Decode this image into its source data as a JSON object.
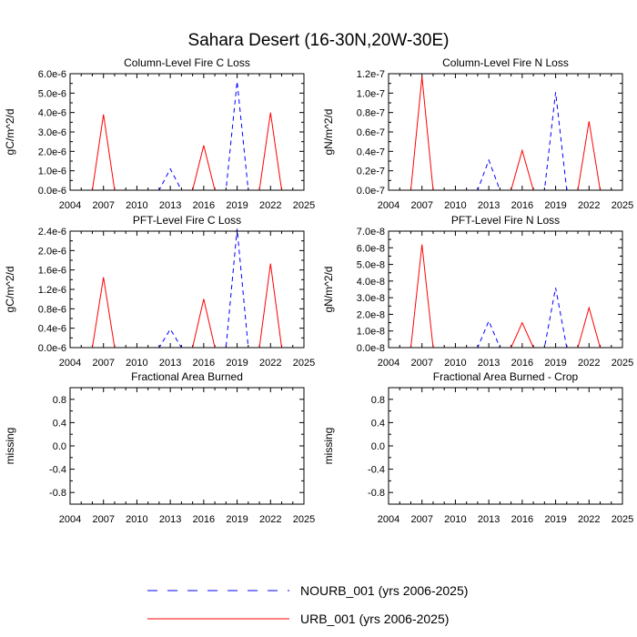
{
  "figure": {
    "title": "Sahara Desert (16-30N,20W-30E)"
  },
  "chart_data": [
    {
      "type": "line",
      "title": "Column-Level Fire C Loss",
      "ylabel": "gC/m^2/d",
      "xlabel": "",
      "x": [
        2006,
        2007,
        2008,
        2009,
        2010,
        2011,
        2012,
        2013,
        2014,
        2015,
        2016,
        2017,
        2018,
        2019,
        2020,
        2021,
        2022,
        2023,
        2024,
        2025
      ],
      "xlim": [
        2004,
        2025
      ],
      "xticks": [
        "2004",
        "2007",
        "2010",
        "2013",
        "2016",
        "2019",
        "2022",
        "2025"
      ],
      "ylim": [
        0,
        6e-06
      ],
      "yticks": [
        0,
        1e-06,
        2e-06,
        3e-06,
        4e-06,
        5e-06,
        6e-06
      ],
      "ytick_labels": [
        "0.0e-6",
        "1.0e-6",
        "2.0e-6",
        "3.0e-6",
        "4.0e-6",
        "5.0e-6",
        "6.0e-6"
      ],
      "series": [
        {
          "name": "NOURB_001 (yrs 2006-2025)",
          "color": "#0000ff",
          "dash": "dashed",
          "values": [
            0,
            0,
            0,
            0,
            0,
            0,
            0,
            1.1e-06,
            0,
            0,
            0,
            0,
            0,
            5.6e-06,
            0,
            0,
            0,
            0,
            0,
            0
          ]
        },
        {
          "name": "URB_001 (yrs 2006-2025)",
          "color": "#ff0000",
          "dash": "solid",
          "values": [
            0,
            3.9e-06,
            0,
            0,
            0,
            0,
            0,
            0,
            0,
            0,
            2.3e-06,
            0,
            0,
            0,
            0,
            0,
            4e-06,
            0,
            0,
            0
          ]
        }
      ]
    },
    {
      "type": "line",
      "title": "Column-Level Fire N Loss",
      "ylabel": "gN/m^2/d",
      "xlabel": "",
      "x": [
        2006,
        2007,
        2008,
        2009,
        2010,
        2011,
        2012,
        2013,
        2014,
        2015,
        2016,
        2017,
        2018,
        2019,
        2020,
        2021,
        2022,
        2023,
        2024,
        2025
      ],
      "xlim": [
        2004,
        2025
      ],
      "xticks": [
        "2004",
        "2007",
        "2010",
        "2013",
        "2016",
        "2019",
        "2022",
        "2025"
      ],
      "ylim": [
        0,
        1.2e-07
      ],
      "yticks": [
        0,
        2e-08,
        4e-08,
        6e-08,
        8e-08,
        1e-07,
        1.2e-07
      ],
      "ytick_labels": [
        "0.0e-7",
        "0.2e-7",
        "0.4e-7",
        "0.6e-7",
        "0.8e-7",
        "1.0e-7",
        "1.2e-7"
      ],
      "series": [
        {
          "name": "NOURB_001 (yrs 2006-2025)",
          "color": "#0000ff",
          "dash": "dashed",
          "values": [
            0,
            0,
            0,
            0,
            0,
            0,
            0,
            3.1e-08,
            0,
            0,
            0,
            0,
            0,
            1.01e-07,
            0,
            0,
            0,
            0,
            0,
            0
          ]
        },
        {
          "name": "URB_001 (yrs 2006-2025)",
          "color": "#ff0000",
          "dash": "solid",
          "values": [
            0,
            1.17e-07,
            0,
            0,
            0,
            0,
            0,
            0,
            0,
            0,
            4.1e-08,
            0,
            0,
            0,
            0,
            0,
            7.1e-08,
            0,
            0,
            0
          ]
        }
      ]
    },
    {
      "type": "line",
      "title": "PFT-Level Fire C Loss",
      "ylabel": "gC/m^2/d",
      "xlabel": "",
      "x": [
        2006,
        2007,
        2008,
        2009,
        2010,
        2011,
        2012,
        2013,
        2014,
        2015,
        2016,
        2017,
        2018,
        2019,
        2020,
        2021,
        2022,
        2023,
        2024,
        2025
      ],
      "xlim": [
        2004,
        2025
      ],
      "xticks": [
        "2004",
        "2007",
        "2010",
        "2013",
        "2016",
        "2019",
        "2022",
        "2025"
      ],
      "ylim": [
        0,
        2.4e-06
      ],
      "yticks": [
        0,
        4e-07,
        8e-07,
        1.2e-06,
        1.6e-06,
        2e-06,
        2.4e-06
      ],
      "ytick_labels": [
        "0.0e-6",
        "0.4e-6",
        "0.8e-6",
        "1.2e-6",
        "1.6e-6",
        "2.0e-6",
        "2.4e-6"
      ],
      "series": [
        {
          "name": "NOURB_001 (yrs 2006-2025)",
          "color": "#0000ff",
          "dash": "dashed",
          "values": [
            0,
            0,
            0,
            0,
            0,
            0,
            0,
            3.8e-07,
            0,
            0,
            0,
            0,
            0,
            2.45e-06,
            0,
            0,
            0,
            0,
            0,
            0
          ]
        },
        {
          "name": "URB_001 (yrs 2006-2025)",
          "color": "#ff0000",
          "dash": "solid",
          "values": [
            0,
            1.45e-06,
            0,
            0,
            0,
            0,
            0,
            0,
            0,
            0,
            1e-06,
            0,
            0,
            0,
            0,
            0,
            1.73e-06,
            0,
            0,
            0
          ]
        }
      ]
    },
    {
      "type": "line",
      "title": "PFT-Level Fire N Loss",
      "ylabel": "gN/m^2/d",
      "xlabel": "",
      "x": [
        2006,
        2007,
        2008,
        2009,
        2010,
        2011,
        2012,
        2013,
        2014,
        2015,
        2016,
        2017,
        2018,
        2019,
        2020,
        2021,
        2022,
        2023,
        2024,
        2025
      ],
      "xlim": [
        2004,
        2025
      ],
      "xticks": [
        "2004",
        "2007",
        "2010",
        "2013",
        "2016",
        "2019",
        "2022",
        "2025"
      ],
      "ylim": [
        0,
        7e-08
      ],
      "yticks": [
        0,
        1e-08,
        2e-08,
        3e-08,
        4e-08,
        5e-08,
        6e-08,
        7e-08
      ],
      "ytick_labels": [
        "0.0e-8",
        "1.0e-8",
        "2.0e-8",
        "3.0e-8",
        "4.0e-8",
        "5.0e-8",
        "6.0e-8",
        "7.0e-8"
      ],
      "series": [
        {
          "name": "NOURB_001 (yrs 2006-2025)",
          "color": "#0000ff",
          "dash": "dashed",
          "values": [
            0,
            0,
            0,
            0,
            0,
            0,
            0,
            1.6e-08,
            0,
            0,
            0,
            0,
            0,
            3.6e-08,
            0,
            0,
            0,
            0,
            0,
            0
          ]
        },
        {
          "name": "URB_001 (yrs 2006-2025)",
          "color": "#ff0000",
          "dash": "solid",
          "values": [
            0,
            6.2e-08,
            0,
            0,
            0,
            0,
            0,
            0,
            0,
            0,
            1.5e-08,
            0,
            0,
            0,
            0,
            0,
            2.4e-08,
            0,
            0,
            0
          ]
        }
      ]
    },
    {
      "type": "line",
      "title": "Fractional Area Burned",
      "ylabel": "missing",
      "xlabel": "",
      "x": [],
      "xlim": [
        2004,
        2025
      ],
      "xticks": [
        "2004",
        "2007",
        "2010",
        "2013",
        "2016",
        "2019",
        "2022",
        "2025"
      ],
      "ylim": [
        -1.0,
        1.0
      ],
      "yticks": [
        -0.8,
        -0.4,
        0.0,
        0.4,
        0.8
      ],
      "ytick_labels": [
        "-0.8",
        "-0.4",
        "0.0",
        "0.4",
        "0.8"
      ],
      "series": []
    },
    {
      "type": "line",
      "title": "Fractional Area Burned - Crop",
      "ylabel": "missing",
      "xlabel": "",
      "x": [],
      "xlim": [
        2004,
        2025
      ],
      "xticks": [
        "2004",
        "2007",
        "2010",
        "2013",
        "2016",
        "2019",
        "2022",
        "2025"
      ],
      "ylim": [
        -1.0,
        1.0
      ],
      "yticks": [
        -0.8,
        -0.4,
        0.0,
        0.4,
        0.8
      ],
      "ytick_labels": [
        "-0.8",
        "-0.4",
        "0.0",
        "0.4",
        "0.8"
      ],
      "series": []
    }
  ],
  "legend": {
    "entries": [
      {
        "label": "NOURB_001 (yrs 2006-2025)",
        "color": "#0000ff",
        "dash": "dashed"
      },
      {
        "label": "URB_001 (yrs 2006-2025)",
        "color": "#ff0000",
        "dash": "solid"
      }
    ]
  }
}
